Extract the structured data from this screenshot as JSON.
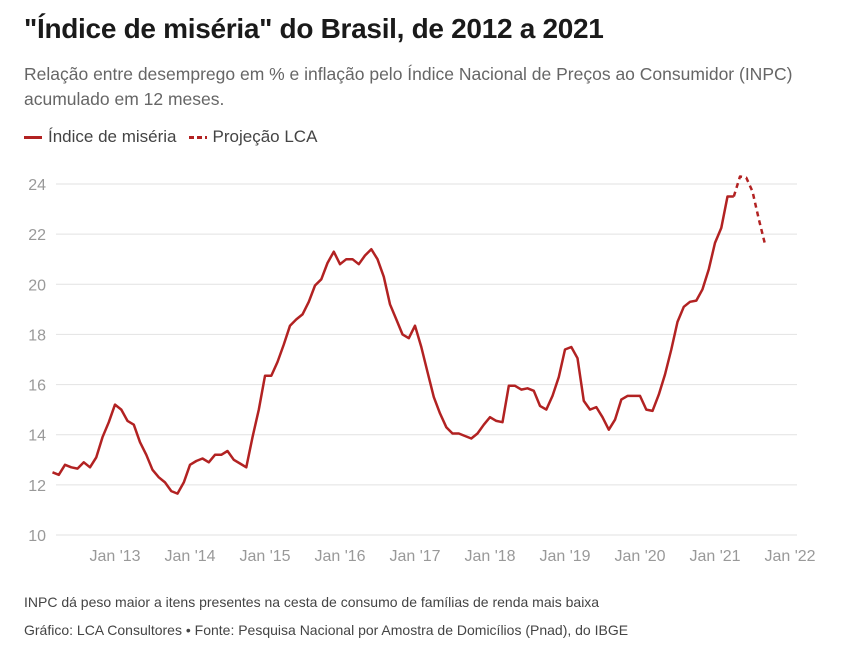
{
  "title": "\"Índice de miséria\" do Brasil, de 2012 a 2021",
  "subtitle": "Relação entre desemprego em % e inflação pelo Índice Nacional de Preços ao Consumidor (INPC) acumulado em 12 meses.",
  "legend": {
    "series_label": "Índice de miséria",
    "projection_label": "Projeção LCA"
  },
  "footer": {
    "note": "INPC dá peso maior a itens presentes na cesta de consumo de famílias de renda mais baixa",
    "source": "Gráfico: LCA Consultores • Fonte: Pesquisa Nacional por Amostra de Domicílios (Pnad), do IBGE"
  },
  "colors": {
    "line": "#b22222",
    "grid": "#e2e2e2",
    "axis_text": "#999999"
  },
  "chart_data": {
    "type": "line",
    "title": "\"Índice de miséria\" do Brasil, de 2012 a 2021",
    "ylim": [
      10,
      24
    ],
    "yticks": [
      10,
      12,
      14,
      16,
      18,
      20,
      22,
      24
    ],
    "xlim": [
      "2012-03",
      "2022-01"
    ],
    "xticks": [
      {
        "x": "2013-01",
        "label": "Jan '13"
      },
      {
        "x": "2014-01",
        "label": "Jan '14"
      },
      {
        "x": "2015-01",
        "label": "Jan '15"
      },
      {
        "x": "2016-01",
        "label": "Jan '16"
      },
      {
        "x": "2017-01",
        "label": "Jan '17"
      },
      {
        "x": "2018-01",
        "label": "Jan '18"
      },
      {
        "x": "2019-01",
        "label": "Jan '19"
      },
      {
        "x": "2020-01",
        "label": "Jan '20"
      },
      {
        "x": "2021-01",
        "label": "Jan '21"
      },
      {
        "x": "2022-01",
        "label": "Jan '22"
      }
    ],
    "grid": true,
    "legend_position": "top-left",
    "series": [
      {
        "name": "Índice de miséria",
        "style": "solid",
        "points": [
          [
            "2012-03",
            12.5
          ],
          [
            "2012-04",
            12.4
          ],
          [
            "2012-05",
            12.8
          ],
          [
            "2012-06",
            12.7
          ],
          [
            "2012-07",
            12.65
          ],
          [
            "2012-08",
            12.9
          ],
          [
            "2012-09",
            12.7
          ],
          [
            "2012-10",
            13.1
          ],
          [
            "2012-11",
            13.9
          ],
          [
            "2012-12",
            14.5
          ],
          [
            "2013-01",
            15.2
          ],
          [
            "2013-02",
            15.0
          ],
          [
            "2013-03",
            14.55
          ],
          [
            "2013-04",
            14.4
          ],
          [
            "2013-05",
            13.7
          ],
          [
            "2013-06",
            13.2
          ],
          [
            "2013-07",
            12.6
          ],
          [
            "2013-08",
            12.3
          ],
          [
            "2013-09",
            12.1
          ],
          [
            "2013-10",
            11.75
          ],
          [
            "2013-11",
            11.65
          ],
          [
            "2013-12",
            12.1
          ],
          [
            "2014-01",
            12.8
          ],
          [
            "2014-02",
            12.95
          ],
          [
            "2014-03",
            13.05
          ],
          [
            "2014-04",
            12.9
          ],
          [
            "2014-05",
            13.2
          ],
          [
            "2014-06",
            13.2
          ],
          [
            "2014-07",
            13.35
          ],
          [
            "2014-08",
            13.0
          ],
          [
            "2014-09",
            12.85
          ],
          [
            "2014-10",
            12.7
          ],
          [
            "2014-11",
            13.9
          ],
          [
            "2014-12",
            15.0
          ],
          [
            "2015-01",
            16.35
          ],
          [
            "2015-02",
            16.35
          ],
          [
            "2015-03",
            16.9
          ],
          [
            "2015-04",
            17.6
          ],
          [
            "2015-05",
            18.35
          ],
          [
            "2015-06",
            18.6
          ],
          [
            "2015-07",
            18.8
          ],
          [
            "2015-08",
            19.3
          ],
          [
            "2015-09",
            19.95
          ],
          [
            "2015-10",
            20.2
          ],
          [
            "2015-11",
            20.85
          ],
          [
            "2015-12",
            21.3
          ],
          [
            "2016-01",
            20.8
          ],
          [
            "2016-02",
            21.0
          ],
          [
            "2016-03",
            21.0
          ],
          [
            "2016-04",
            20.8
          ],
          [
            "2016-05",
            21.15
          ],
          [
            "2016-06",
            21.4
          ],
          [
            "2016-07",
            21.0
          ],
          [
            "2016-08",
            20.3
          ],
          [
            "2016-09",
            19.2
          ],
          [
            "2016-10",
            18.6
          ],
          [
            "2016-11",
            18.0
          ],
          [
            "2016-12",
            17.85
          ],
          [
            "2017-01",
            18.35
          ],
          [
            "2017-02",
            17.5
          ],
          [
            "2017-03",
            16.5
          ],
          [
            "2017-04",
            15.5
          ],
          [
            "2017-05",
            14.85
          ],
          [
            "2017-06",
            14.3
          ],
          [
            "2017-07",
            14.05
          ],
          [
            "2017-08",
            14.05
          ],
          [
            "2017-09",
            13.95
          ],
          [
            "2017-10",
            13.85
          ],
          [
            "2017-11",
            14.05
          ],
          [
            "2017-12",
            14.4
          ],
          [
            "2018-01",
            14.7
          ],
          [
            "2018-02",
            14.55
          ],
          [
            "2018-03",
            14.5
          ],
          [
            "2018-04",
            15.95
          ],
          [
            "2018-05",
            15.95
          ],
          [
            "2018-06",
            15.8
          ],
          [
            "2018-07",
            15.85
          ],
          [
            "2018-08",
            15.75
          ],
          [
            "2018-09",
            15.15
          ],
          [
            "2018-10",
            15.0
          ],
          [
            "2018-11",
            15.55
          ],
          [
            "2018-12",
            16.3
          ],
          [
            "2019-01",
            17.4
          ],
          [
            "2019-02",
            17.5
          ],
          [
            "2019-03",
            17.05
          ],
          [
            "2019-04",
            15.35
          ],
          [
            "2019-05",
            15.0
          ],
          [
            "2019-06",
            15.1
          ],
          [
            "2019-07",
            14.7
          ],
          [
            "2019-08",
            14.2
          ],
          [
            "2019-09",
            14.6
          ],
          [
            "2019-10",
            15.4
          ],
          [
            "2019-11",
            15.55
          ],
          [
            "2019-12",
            15.55
          ],
          [
            "2020-01",
            15.55
          ],
          [
            "2020-02",
            15.0
          ],
          [
            "2020-03",
            14.95
          ],
          [
            "2020-04",
            15.6
          ],
          [
            "2020-05",
            16.4
          ],
          [
            "2020-06",
            17.4
          ],
          [
            "2020-07",
            18.5
          ],
          [
            "2020-08",
            19.1
          ],
          [
            "2020-09",
            19.3
          ],
          [
            "2020-10",
            19.35
          ],
          [
            "2020-11",
            19.8
          ],
          [
            "2020-12",
            20.6
          ],
          [
            "2021-01",
            21.65
          ],
          [
            "2021-02",
            22.25
          ],
          [
            "2021-03",
            23.5
          ],
          [
            "2021-04",
            23.5
          ]
        ]
      },
      {
        "name": "Projeção LCA",
        "style": "dashed",
        "points": [
          [
            "2021-04",
            23.5
          ],
          [
            "2021-05",
            24.3
          ],
          [
            "2021-06",
            24.25
          ],
          [
            "2021-07",
            23.7
          ],
          [
            "2021-08",
            22.6
          ],
          [
            "2021-09",
            21.6
          ]
        ]
      }
    ]
  }
}
